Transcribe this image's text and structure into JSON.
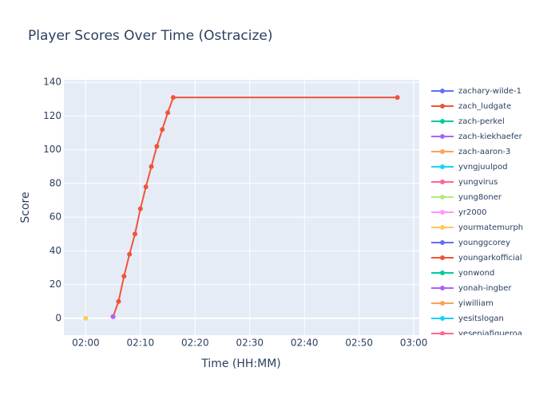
{
  "chart_data": {
    "type": "line",
    "title": "Player Scores Over Time (Ostracize)",
    "x_label": "Time (HH:MM)",
    "y_label": "Score",
    "xlim": [
      "01:56",
      "03:01"
    ],
    "xticks": [
      "02:00",
      "02:10",
      "02:20",
      "02:30",
      "02:40",
      "02:50",
      "03:00"
    ],
    "ylim": [
      -10,
      141.5
    ],
    "yticks": [
      0,
      20,
      40,
      60,
      80,
      100,
      120,
      140
    ],
    "grid": true,
    "legend": "right",
    "series": [
      {
        "name": "zachary-wilde-1",
        "color": "#636efa",
        "x": [],
        "values": []
      },
      {
        "name": "zach_ludgate",
        "color": "#EF553B",
        "x": [
          "02:05",
          "02:06",
          "02:07",
          "02:08",
          "02:09",
          "02:10",
          "02:11",
          "02:12",
          "02:13",
          "02:14",
          "02:15",
          "02:16",
          "02:57"
        ],
        "values": [
          1,
          10,
          25,
          38,
          50,
          65,
          78,
          90,
          102,
          112,
          122,
          131,
          131
        ]
      },
      {
        "name": "zach-perkel",
        "color": "#00cc96",
        "x": [],
        "values": []
      },
      {
        "name": "zach-kiekhaefer",
        "color": "#ab63fa",
        "x": [
          "02:05"
        ],
        "values": [
          1
        ]
      },
      {
        "name": "zach-aaron-3",
        "color": "#FFA15A",
        "x": [],
        "values": []
      },
      {
        "name": "yvngjuulpod",
        "color": "#19d3f3",
        "x": [],
        "values": []
      },
      {
        "name": "yungvirus",
        "color": "#FF6692",
        "x": [],
        "values": []
      },
      {
        "name": "yung8oner",
        "color": "#B6E880",
        "x": [],
        "values": []
      },
      {
        "name": "yr2000",
        "color": "#FF97FF",
        "x": [],
        "values": []
      },
      {
        "name": "yourmatemurph",
        "color": "#FECB52",
        "x": [
          "02:00"
        ],
        "values": [
          0
        ]
      },
      {
        "name": "younggcorey",
        "color": "#636efa",
        "x": [],
        "values": []
      },
      {
        "name": "youngarkofficial",
        "color": "#EF553B",
        "x": [],
        "values": []
      },
      {
        "name": "yonwond",
        "color": "#00cc96",
        "x": [],
        "values": []
      },
      {
        "name": "yonah-ingber",
        "color": "#ab63fa",
        "x": [],
        "values": []
      },
      {
        "name": "yiwilliam",
        "color": "#FFA15A",
        "x": [],
        "values": []
      },
      {
        "name": "yesitslogan",
        "color": "#19d3f3",
        "x": [],
        "values": []
      },
      {
        "name": "yeseniafigueroa",
        "color": "#FF6692",
        "x": [],
        "values": []
      }
    ]
  }
}
